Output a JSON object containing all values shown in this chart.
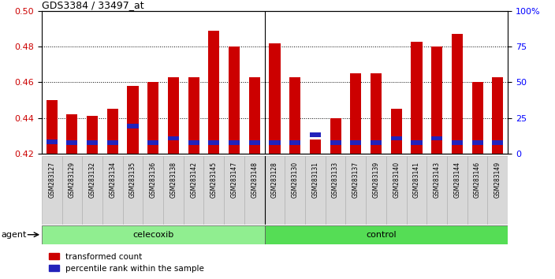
{
  "title": "GDS3384 / 33497_at",
  "samples": [
    "GSM283127",
    "GSM283129",
    "GSM283132",
    "GSM283134",
    "GSM283135",
    "GSM283136",
    "GSM283138",
    "GSM283142",
    "GSM283145",
    "GSM283147",
    "GSM283148",
    "GSM283128",
    "GSM283130",
    "GSM283131",
    "GSM283133",
    "GSM283137",
    "GSM283139",
    "GSM283140",
    "GSM283141",
    "GSM283143",
    "GSM283144",
    "GSM283146",
    "GSM283149"
  ],
  "red_values": [
    0.45,
    0.442,
    0.441,
    0.445,
    0.458,
    0.46,
    0.463,
    0.463,
    0.489,
    0.48,
    0.463,
    0.482,
    0.463,
    0.428,
    0.44,
    0.465,
    0.465,
    0.445,
    0.483,
    0.48,
    0.487,
    0.46,
    0.463
  ],
  "blue_values": [
    0.4265,
    0.426,
    0.426,
    0.426,
    0.4355,
    0.426,
    0.4285,
    0.426,
    0.426,
    0.426,
    0.426,
    0.426,
    0.426,
    0.4305,
    0.426,
    0.426,
    0.426,
    0.4285,
    0.426,
    0.4285,
    0.426,
    0.426,
    0.426
  ],
  "celecoxib_count": 11,
  "control_count": 12,
  "ymin": 0.42,
  "ymax": 0.5,
  "yticks_left": [
    0.42,
    0.44,
    0.46,
    0.48,
    0.5
  ],
  "yticks_right_pct": [
    0,
    25,
    50,
    75,
    100
  ],
  "yticks_right_labels": [
    "0",
    "25",
    "50",
    "75",
    "100%"
  ],
  "gridlines": [
    0.44,
    0.46,
    0.48
  ],
  "bar_color": "#cc0000",
  "blue_color": "#2222bb",
  "celecoxib_color": "#90ee90",
  "control_color": "#55dd55",
  "agent_label": "agent",
  "celecoxib_label": "celecoxib",
  "control_label": "control",
  "legend1": "transformed count",
  "legend2": "percentile rank within the sample",
  "bar_width": 0.55
}
